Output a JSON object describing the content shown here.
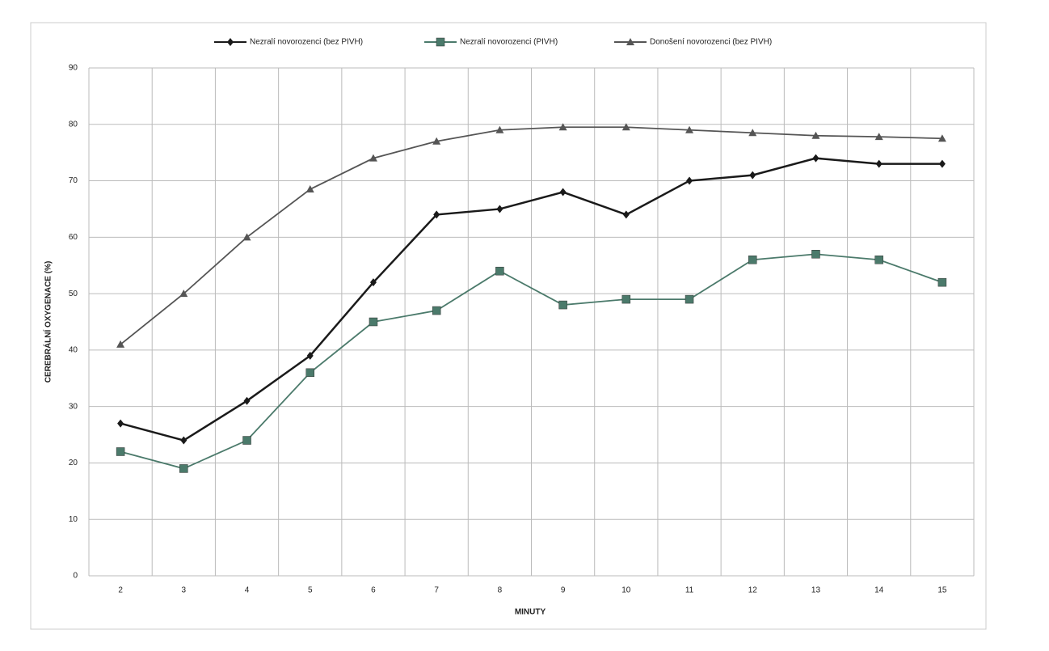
{
  "chart_data": {
    "type": "line",
    "y_label": "CEREBRÁLNÍ OXYGENACE (%)",
    "x_label": "MINUTY",
    "categories": [
      "2",
      "3",
      "4",
      "5",
      "6",
      "7",
      "8",
      "9",
      "10",
      "11",
      "12",
      "13",
      "14",
      "15"
    ],
    "series": [
      {
        "name": "Nezralí novorozenci (bez PIVH)",
        "color": "#1a1a1a",
        "marker": "diamond",
        "values": [
          27,
          24,
          31,
          39,
          52,
          64,
          65,
          68,
          64,
          70,
          71,
          74,
          73,
          73
        ]
      },
      {
        "name": "Nezralí novorozenci (PIVH)",
        "color": "#4b7a6b",
        "marker": "square",
        "values": [
          22,
          19,
          24,
          36,
          45,
          47,
          54,
          48,
          49,
          49,
          56,
          57,
          56,
          52
        ]
      },
      {
        "name": "Donošení novorozenci (bez PIVH)",
        "color": "#555555",
        "marker": "triangle",
        "values": [
          41,
          50,
          60,
          68.5,
          74,
          77,
          79,
          79.5,
          79.5,
          79,
          78.5,
          78,
          77.8,
          77.5
        ]
      }
    ],
    "ylim": [
      0,
      90
    ],
    "yticks": [
      0,
      10,
      20,
      30,
      40,
      50,
      60,
      70,
      80,
      90
    ],
    "grid": true
  }
}
